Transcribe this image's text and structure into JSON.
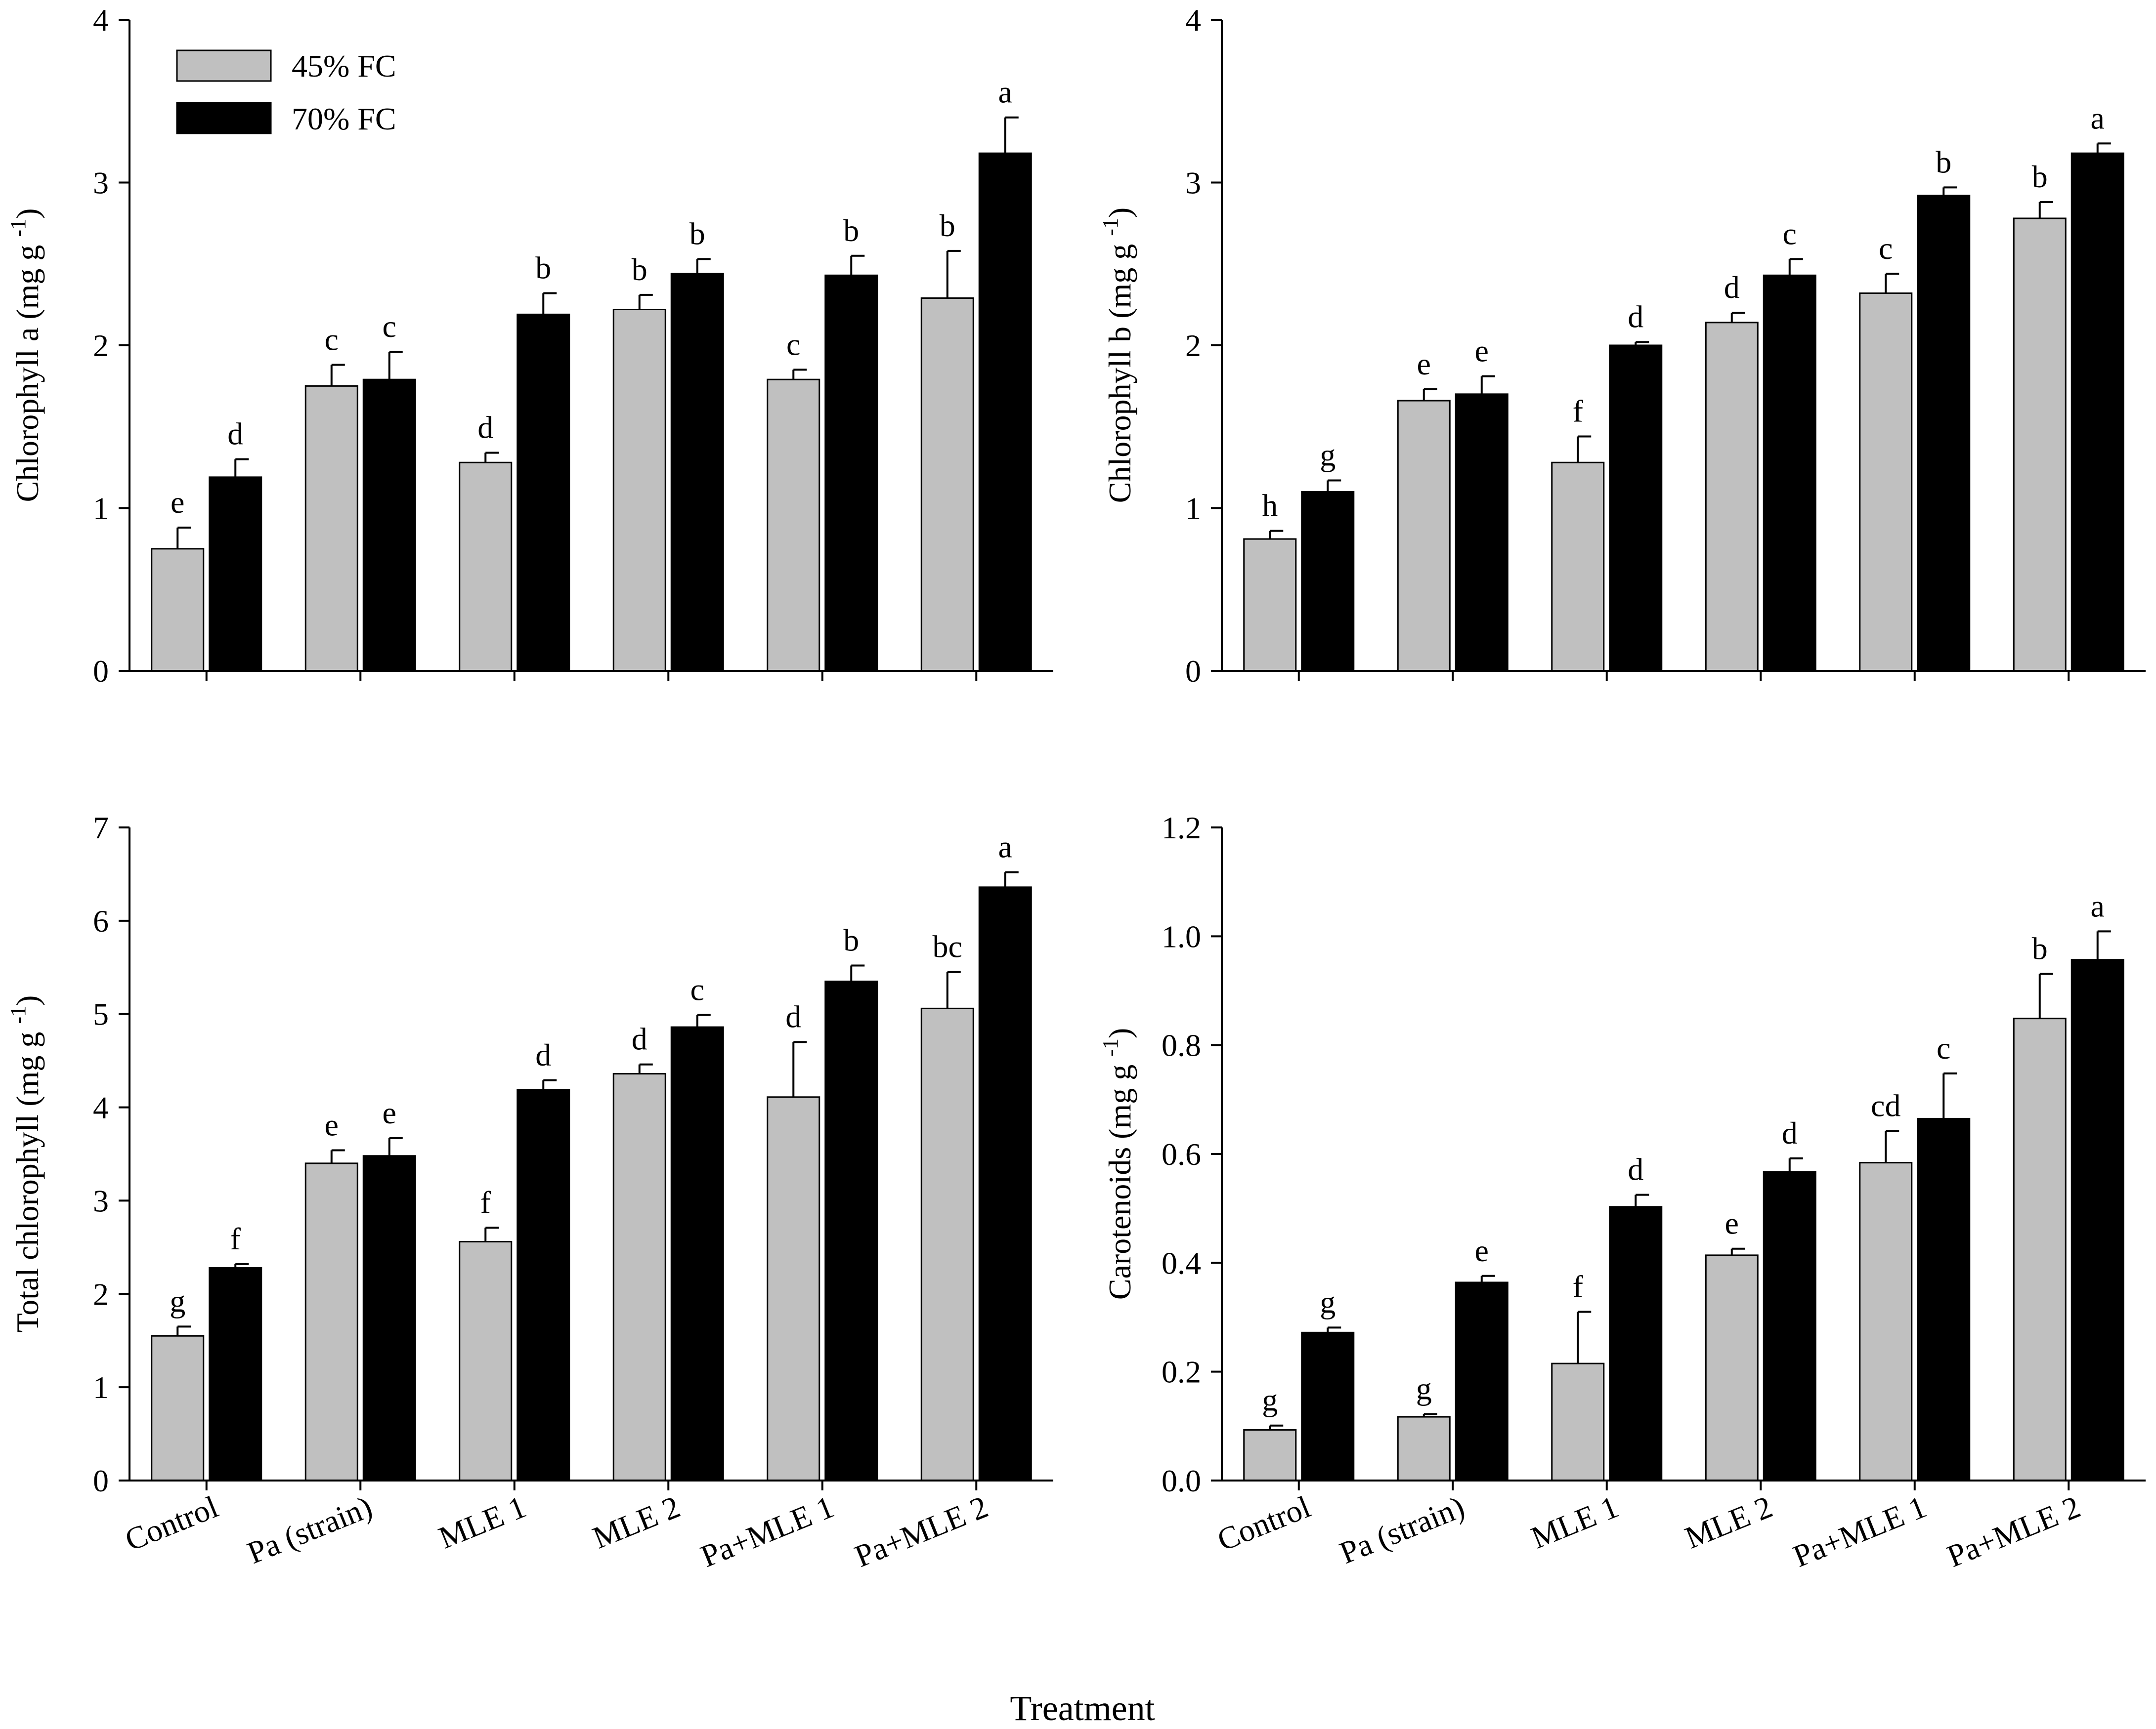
{
  "figure": {
    "xaxis_title": "Treatment"
  },
  "legend": {
    "items": [
      {
        "label": "45% FC",
        "color": "#c0c0c0"
      },
      {
        "label": "70% FC",
        "color": "#000000"
      }
    ]
  },
  "chart_data": [
    {
      "type": "bar",
      "id": "chl-a",
      "ylabel": "Chlorophyll a (mg g-1)",
      "ylim": [
        0,
        4
      ],
      "yticks": [
        "0",
        "1",
        "2",
        "3",
        "4"
      ],
      "categories": [
        "Control",
        "Pa (strain)",
        "MLE 1",
        "MLE 2",
        "Pa+MLE 1",
        "Pa+MLE 2"
      ],
      "series": [
        {
          "name": "45% FC",
          "color": "#c0c0c0",
          "values": [
            0.75,
            1.75,
            1.28,
            2.22,
            1.79,
            2.29
          ],
          "errors": [
            0.13,
            0.13,
            0.06,
            0.09,
            0.06,
            0.29
          ],
          "letters": [
            "e",
            "c",
            "d",
            "b",
            "c",
            "b"
          ]
        },
        {
          "name": "70% FC",
          "color": "#000000",
          "values": [
            1.19,
            1.79,
            2.19,
            2.44,
            2.43,
            3.18
          ],
          "errors": [
            0.11,
            0.17,
            0.13,
            0.09,
            0.12,
            0.22
          ],
          "letters": [
            "d",
            "c",
            "b",
            "b",
            "b",
            "a"
          ]
        }
      ]
    },
    {
      "type": "bar",
      "id": "chl-b",
      "ylabel": "Chlorophyll b (mg g-1)",
      "ylim": [
        0,
        4
      ],
      "yticks": [
        "0",
        "1",
        "2",
        "3",
        "4"
      ],
      "categories": [
        "Control",
        "Pa (strain)",
        "MLE 1",
        "MLE 2",
        "Pa+MLE 1",
        "Pa+MLE 2"
      ],
      "series": [
        {
          "name": "45% FC",
          "color": "#c0c0c0",
          "values": [
            0.81,
            1.66,
            1.28,
            2.14,
            2.32,
            2.78
          ],
          "errors": [
            0.05,
            0.07,
            0.16,
            0.06,
            0.12,
            0.1
          ],
          "letters": [
            "h",
            "e",
            "f",
            "d",
            "c",
            "b"
          ]
        },
        {
          "name": "70% FC",
          "color": "#000000",
          "values": [
            1.1,
            1.7,
            2.0,
            2.43,
            2.92,
            3.18
          ],
          "errors": [
            0.07,
            0.11,
            0.02,
            0.1,
            0.05,
            0.06
          ],
          "letters": [
            "g",
            "e",
            "d",
            "c",
            "b",
            "a"
          ]
        }
      ]
    },
    {
      "type": "bar",
      "id": "total-chl",
      "ylabel": "Total chlorophyll  (mg g-1)",
      "ylim": [
        0,
        7
      ],
      "yticks": [
        "0",
        "1",
        "2",
        "3",
        "4",
        "5",
        "6",
        "7"
      ],
      "categories": [
        "Control",
        "Pa (strain)",
        "MLE 1",
        "MLE 2",
        "Pa+MLE 1",
        "Pa+MLE 2"
      ],
      "series": [
        {
          "name": "45% FC",
          "color": "#c0c0c0",
          "values": [
            1.55,
            3.4,
            2.56,
            4.36,
            4.11,
            5.06
          ],
          "errors": [
            0.1,
            0.14,
            0.15,
            0.1,
            0.59,
            0.39
          ],
          "letters": [
            "g",
            "e",
            "f",
            "d",
            "d",
            "bc"
          ]
        },
        {
          "name": "70% FC",
          "color": "#000000",
          "values": [
            2.28,
            3.48,
            4.19,
            4.86,
            5.35,
            6.36
          ],
          "errors": [
            0.04,
            0.19,
            0.1,
            0.13,
            0.17,
            0.16
          ],
          "letters": [
            "f",
            "e",
            "d",
            "c",
            "b",
            "a"
          ]
        }
      ]
    },
    {
      "type": "bar",
      "id": "carotenoids",
      "ylabel": "Carotenoids (mg g-1)",
      "ylim": [
        0,
        1.2
      ],
      "yticks": [
        "0.0",
        "0.2",
        "0.4",
        "0.6",
        "0.8",
        "1.0",
        "1.2"
      ],
      "categories": [
        "Control",
        "Pa (strain)",
        "MLE 1",
        "MLE 2",
        "Pa+MLE 1",
        "Pa+MLE 2"
      ],
      "series": [
        {
          "name": "45% FC",
          "color": "#c0c0c0",
          "values": [
            0.093,
            0.117,
            0.215,
            0.414,
            0.584,
            0.849
          ],
          "errors": [
            0.008,
            0.005,
            0.095,
            0.012,
            0.058,
            0.082
          ],
          "letters": [
            "g",
            "g",
            "f",
            "e",
            "cd",
            "b"
          ]
        },
        {
          "name": "70% FC",
          "color": "#000000",
          "values": [
            0.272,
            0.364,
            0.503,
            0.567,
            0.665,
            0.957
          ],
          "errors": [
            0.009,
            0.012,
            0.022,
            0.025,
            0.083,
            0.052
          ],
          "letters": [
            "g",
            "e",
            "d",
            "d",
            "c",
            "a"
          ]
        }
      ]
    }
  ]
}
